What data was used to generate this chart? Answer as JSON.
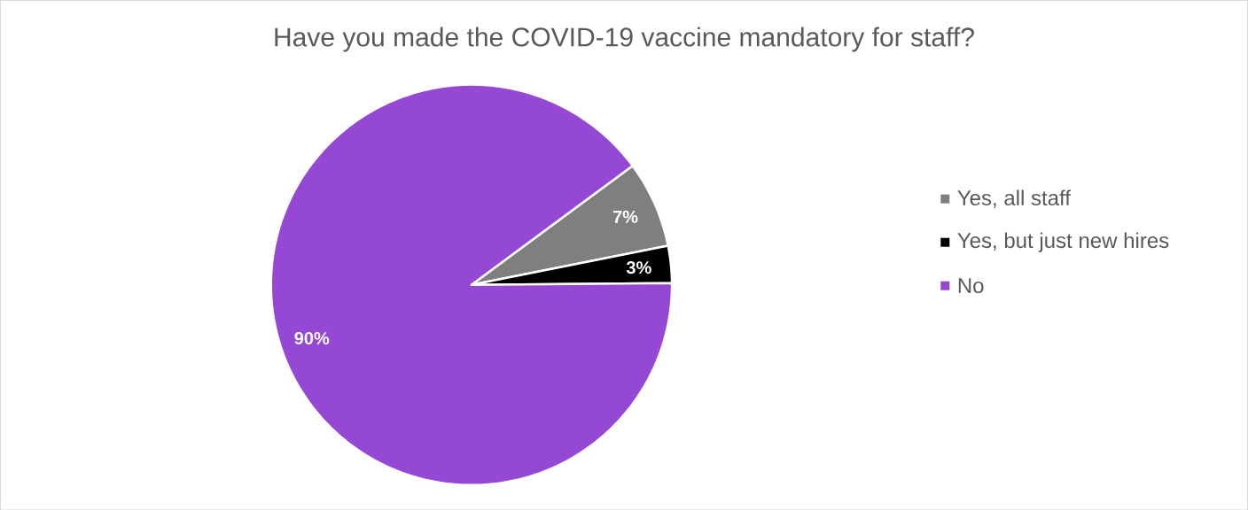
{
  "chart_data": {
    "type": "pie",
    "title": "Have you made the COVID-19 vaccine mandatory for staff?",
    "categories": [
      "Yes, all staff",
      "Yes, but just new hires",
      "No"
    ],
    "values": [
      7,
      3,
      90
    ],
    "colors": [
      "#7f7f7f",
      "#000000",
      "#9448d4"
    ],
    "value_labels": [
      "7%",
      "3%",
      "90%"
    ],
    "legend": "right"
  }
}
